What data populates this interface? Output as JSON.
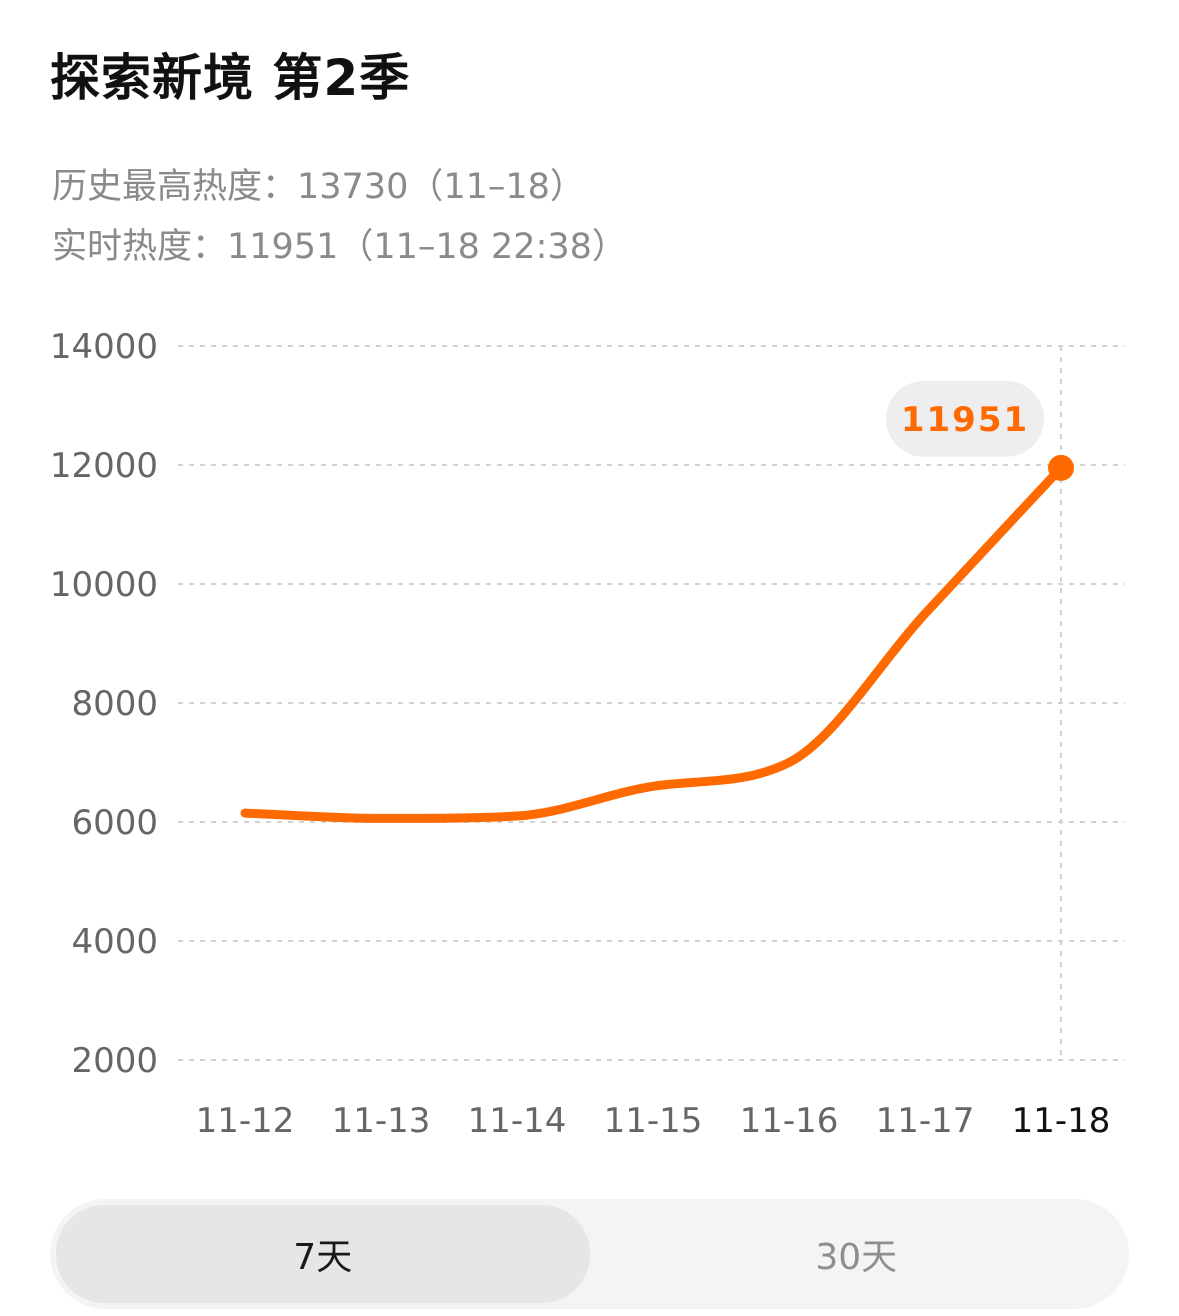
{
  "header": {
    "title": "探索新境 第2季",
    "peak_heat": "历史最高热度：13730（11–18）",
    "live_heat": "实时热度：11951（11–18 22:38）"
  },
  "colors": {
    "accent": "#ff6a00",
    "bubble_bg": "#eeeeee",
    "grid": "#d2d2d2"
  },
  "chart_data": {
    "type": "line",
    "x": [
      "11-12",
      "11-13",
      "11-14",
      "11-15",
      "11-16",
      "11-17",
      "11-18"
    ],
    "y": [
      6150,
      6060,
      6100,
      6600,
      7000,
      9500,
      11951
    ],
    "yticks": [
      "14000",
      "12000",
      "10000",
      "8000",
      "6000",
      "4000",
      "2000"
    ],
    "ylim": [
      2000,
      14000
    ],
    "grid": true,
    "highlight": {
      "x": "11-18",
      "label": "11951"
    },
    "series": [
      {
        "values": [
          6150,
          6060,
          6100,
          6600,
          7000,
          9500,
          11951
        ]
      }
    ]
  },
  "range_toggle": {
    "options": [
      "7天",
      "30天"
    ],
    "selected": "7天"
  }
}
